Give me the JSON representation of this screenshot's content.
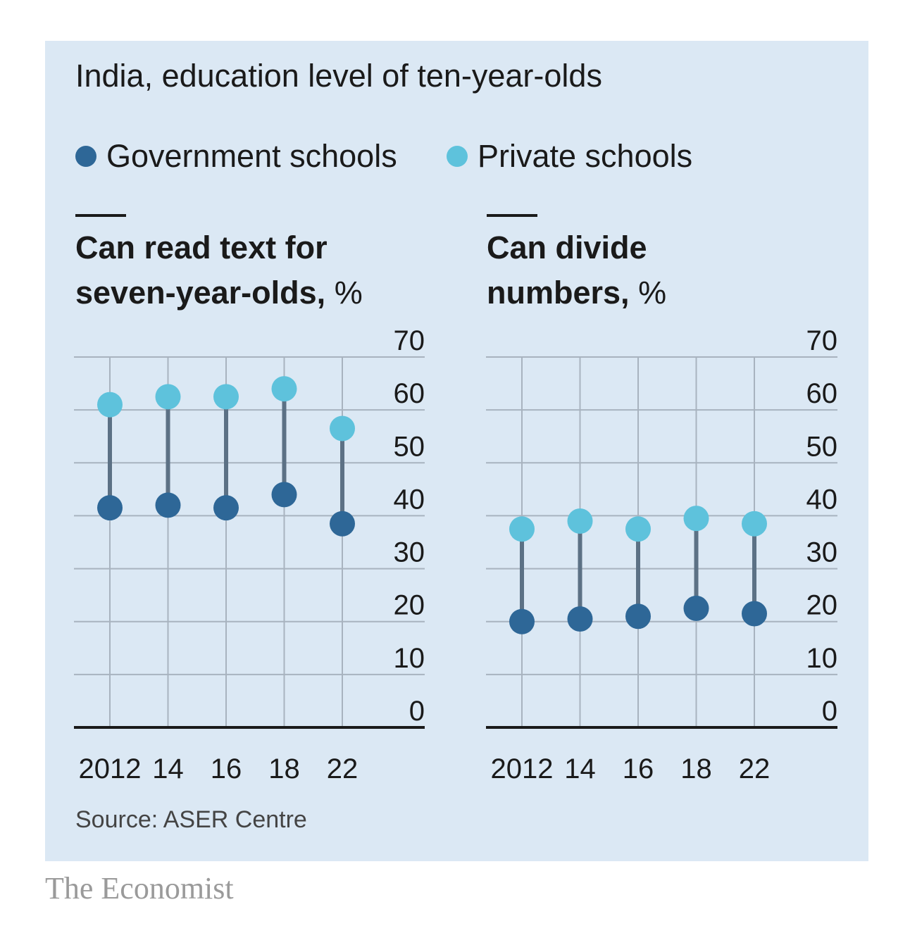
{
  "title": "India, education level of ten-year-olds",
  "legend": [
    {
      "label": "Government schools",
      "color": "#2e6797"
    },
    {
      "label": "Private schools",
      "color": "#5ec2dc"
    }
  ],
  "colors": {
    "background": "#dbe8f4",
    "gridline": "#a8b3bf",
    "axis": "#1a1a1a",
    "connector": "#5c7185",
    "government": "#2e6797",
    "private": "#5ec2dc"
  },
  "chart_data": [
    {
      "type": "scatter",
      "title": "Can read text for seven-year-olds,",
      "title_line1": "Can read text for",
      "title_line2": "seven-year-olds,",
      "unit": "%",
      "categories": [
        "2012",
        "14",
        "16",
        "18",
        "22"
      ],
      "ylim": [
        0,
        70
      ],
      "yticks": [
        0,
        10,
        20,
        30,
        40,
        50,
        60,
        70
      ],
      "grid": true,
      "series": [
        {
          "name": "Government schools",
          "values": [
            41.5,
            42,
            41.5,
            44,
            38.5
          ]
        },
        {
          "name": "Private schools",
          "values": [
            61,
            62.5,
            62.5,
            64,
            56.5
          ]
        }
      ]
    },
    {
      "type": "scatter",
      "title": "Can divide numbers,",
      "title_line1": "Can divide",
      "title_line2": "numbers,",
      "unit": "%",
      "categories": [
        "2012",
        "14",
        "16",
        "18",
        "22"
      ],
      "ylim": [
        0,
        70
      ],
      "yticks": [
        0,
        10,
        20,
        30,
        40,
        50,
        60,
        70
      ],
      "grid": true,
      "series": [
        {
          "name": "Government schools",
          "values": [
            20,
            20.5,
            21,
            22.5,
            21.5
          ]
        },
        {
          "name": "Private schools",
          "values": [
            37.5,
            39,
            37.5,
            39.5,
            38.5
          ]
        }
      ]
    }
  ],
  "source": "Source: ASER Centre",
  "brand": "The Economist"
}
